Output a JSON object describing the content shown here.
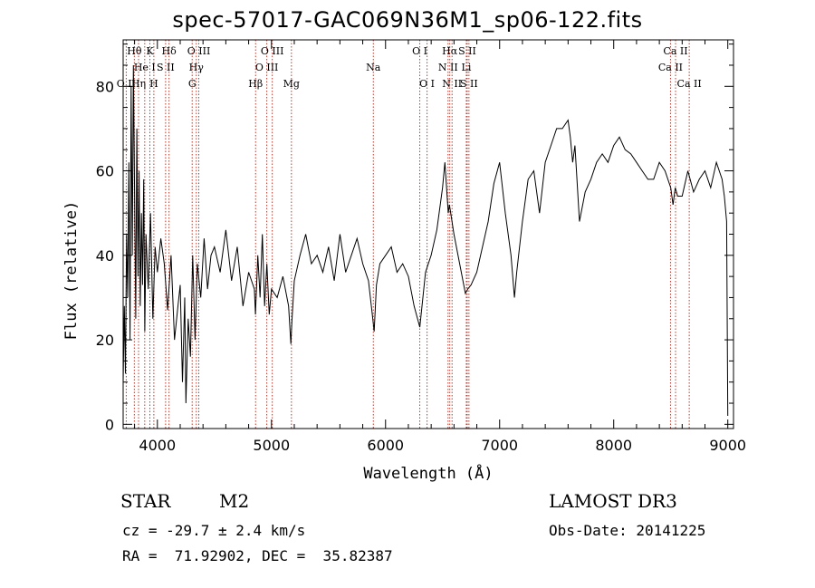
{
  "title": "spec-57017-GAC069N36M1_sp06-122.fits",
  "info": {
    "obj_type": "STAR",
    "obj_class": "M2",
    "survey": "LAMOST DR3",
    "cz": "cz = -29.7 ± 2.4 km/s",
    "obs_date": "Obs-Date: 20141225",
    "coords": "RA =  71.92902, DEC =  35.82387"
  },
  "colors": {
    "spectrum": "#000000",
    "line_marker": "#c0392b",
    "axes": "#000000"
  },
  "chart_data": {
    "type": "line",
    "xlabel": "Wavelength (Å)",
    "ylabel": "Flux (relative)",
    "xlim": [
      3700,
      9050
    ],
    "ylim": [
      -1,
      91
    ],
    "xticks": [
      4000,
      5000,
      6000,
      7000,
      8000,
      9000
    ],
    "yticks": [
      0,
      20,
      40,
      60,
      80
    ],
    "grid": false,
    "series": [
      {
        "x": [
          3700,
          3710,
          3720,
          3730,
          3740,
          3750,
          3760,
          3770,
          3780,
          3790,
          3800,
          3810,
          3820,
          3830,
          3840,
          3850,
          3860,
          3870,
          3880,
          3890,
          3900,
          3920,
          3940,
          3960,
          3980,
          4000,
          4030,
          4060,
          4090,
          4120,
          4150,
          4180,
          4200,
          4220,
          4240,
          4250,
          4270,
          4290,
          4310,
          4330,
          4350,
          4380,
          4410,
          4440,
          4470,
          4500,
          4550,
          4600,
          4650,
          4700,
          4750,
          4800,
          4850,
          4860,
          4880,
          4900,
          4920,
          4940,
          4960,
          4980,
          5000,
          5050,
          5100,
          5150,
          5170,
          5180,
          5200,
          5250,
          5300,
          5350,
          5400,
          5450,
          5500,
          5550,
          5600,
          5650,
          5700,
          5750,
          5800,
          5850,
          5880,
          5900,
          5920,
          5950,
          6000,
          6050,
          6100,
          6150,
          6200,
          6250,
          6300,
          6350,
          6400,
          6450,
          6500,
          6520,
          6550,
          6560,
          6600,
          6650,
          6700,
          6720,
          6750,
          6800,
          6850,
          6900,
          6950,
          7000,
          7050,
          7100,
          7130,
          7150,
          7200,
          7250,
          7300,
          7350,
          7400,
          7450,
          7500,
          7550,
          7600,
          7620,
          7640,
          7660,
          7700,
          7750,
          7800,
          7850,
          7900,
          7950,
          8000,
          8050,
          8100,
          8150,
          8200,
          8250,
          8300,
          8350,
          8400,
          8450,
          8500,
          8520,
          8540,
          8560,
          8600,
          8650,
          8700,
          8750,
          8800,
          8850,
          8900,
          8950,
          8970,
          8990,
          9000
        ],
        "y": [
          10,
          28,
          12,
          45,
          30,
          62,
          20,
          80,
          40,
          85,
          55,
          25,
          70,
          35,
          60,
          28,
          50,
          33,
          58,
          22,
          45,
          32,
          50,
          25,
          42,
          36,
          44,
          38,
          27,
          40,
          20,
          28,
          33,
          10,
          30,
          5,
          25,
          16,
          40,
          20,
          38,
          30,
          44,
          32,
          40,
          42,
          36,
          46,
          34,
          42,
          28,
          36,
          32,
          26,
          40,
          30,
          45,
          28,
          38,
          26,
          32,
          30,
          35,
          28,
          19,
          25,
          34,
          40,
          45,
          38,
          40,
          36,
          42,
          34,
          45,
          36,
          40,
          44,
          38,
          34,
          27,
          22,
          33,
          38,
          40,
          42,
          36,
          38,
          35,
          28,
          23,
          36,
          40,
          46,
          56,
          62,
          50,
          52,
          45,
          38,
          31,
          32,
          33,
          36,
          42,
          48,
          57,
          62,
          50,
          40,
          30,
          36,
          48,
          58,
          60,
          50,
          62,
          66,
          70,
          70,
          72,
          68,
          62,
          66,
          48,
          55,
          58,
          62,
          64,
          62,
          66,
          68,
          65,
          64,
          62,
          60,
          58,
          58,
          62,
          60,
          56,
          52,
          56,
          54,
          54,
          60,
          55,
          58,
          60,
          56,
          62,
          58,
          54,
          48,
          2
        ]
      }
    ],
    "lines": [
      {
        "name": "O II",
        "wave": 3727,
        "row": 2
      },
      {
        "name": "Hθ",
        "wave": 3798,
        "row": 0
      },
      {
        "name": "Hη",
        "wave": 3835,
        "row": 2
      },
      {
        "name": "He I",
        "wave": 3889,
        "row": 1
      },
      {
        "name": "K",
        "wave": 3934,
        "row": 0
      },
      {
        "name": "H",
        "wave": 3969,
        "row": 2
      },
      {
        "name": "S II",
        "wave": 4072,
        "row": 1
      },
      {
        "name": "Hδ",
        "wave": 4102,
        "row": 0
      },
      {
        "name": "G",
        "wave": 4305,
        "row": 2
      },
      {
        "name": "Hγ",
        "wave": 4341,
        "row": 1
      },
      {
        "name": "O III",
        "wave": 4363,
        "row": 0
      },
      {
        "name": "Hβ",
        "wave": 4861,
        "row": 2
      },
      {
        "name": "O III",
        "wave": 4959,
        "row": 1
      },
      {
        "name": "O III",
        "wave": 5007,
        "row": 0
      },
      {
        "name": "Mg",
        "wave": 5175,
        "row": 2
      },
      {
        "name": "Na",
        "wave": 5893,
        "row": 1
      },
      {
        "name": "O I",
        "wave": 6300,
        "row": 0
      },
      {
        "name": "O I",
        "wave": 6364,
        "row": 2
      },
      {
        "name": "N II",
        "wave": 6548,
        "row": 1
      },
      {
        "name": "Hα",
        "wave": 6563,
        "row": 0
      },
      {
        "name": "N II",
        "wave": 6583,
        "row": 2
      },
      {
        "name": "Li",
        "wave": 6708,
        "row": 1
      },
      {
        "name": "S II",
        "wave": 6716,
        "row": 0
      },
      {
        "name": "S II",
        "wave": 6731,
        "row": 2
      },
      {
        "name": "Ca II",
        "wave": 8498,
        "row": 1
      },
      {
        "name": "Ca II",
        "wave": 8542,
        "row": 0
      },
      {
        "name": "Ca II",
        "wave": 8662,
        "row": 2
      }
    ]
  }
}
